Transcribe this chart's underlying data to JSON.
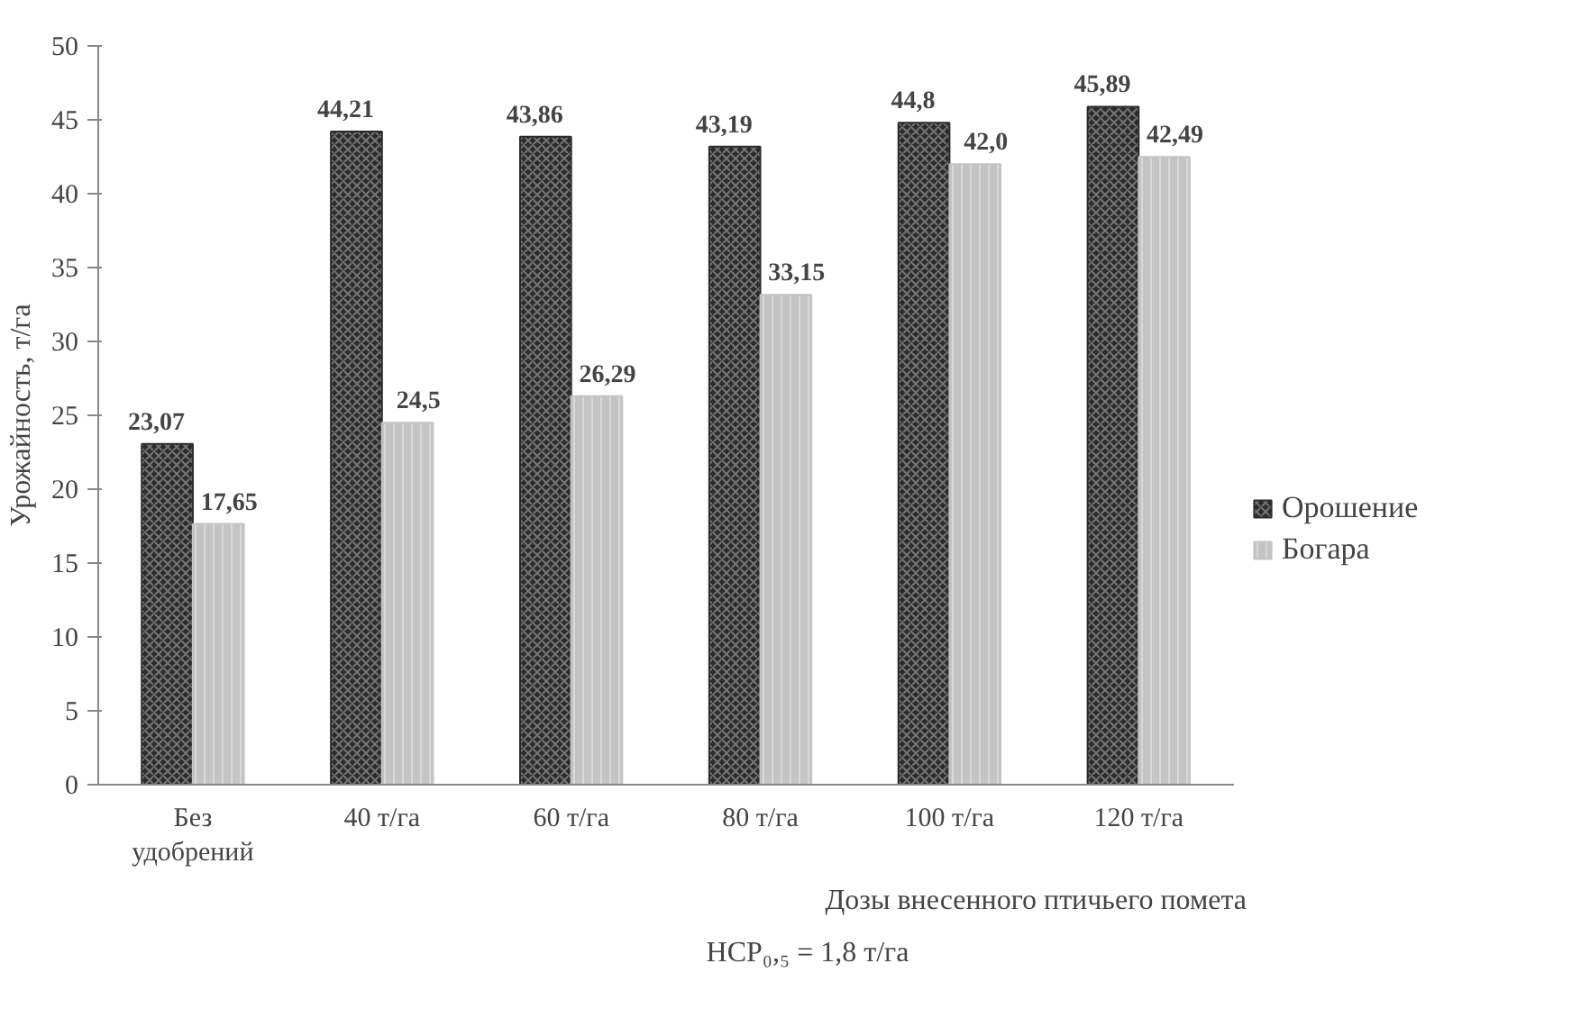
{
  "chart_data": {
    "type": "bar",
    "ylabel": "Урожайность, т/га",
    "xlabel": "Дозы внесенного птичьего помета",
    "annotations": [
      "НСР₀,₅ = 1,8 т/га"
    ],
    "categories": [
      "Без удобрений",
      "40 т/га",
      "60 т/га",
      "80 т/га",
      "100 т/га",
      "120 т/га"
    ],
    "series": [
      {
        "name": "Орошение",
        "color": "#2b2b2b",
        "values": [
          23.07,
          44.21,
          43.86,
          43.19,
          44.8,
          45.89
        ],
        "value_labels": [
          "23,07",
          "44,21",
          "43,86",
          "43,19",
          "44,8",
          "45,89"
        ]
      },
      {
        "name": "Богара",
        "color": "#c4c4c4",
        "values": [
          17.65,
          24.5,
          26.29,
          33.15,
          42.0,
          42.49
        ],
        "value_labels": [
          "17,65",
          "24,5",
          "26,29",
          "33,15",
          "42,0",
          "42,49"
        ]
      }
    ],
    "ylim": [
      0,
      50
    ],
    "yticks": [
      0,
      5,
      10,
      15,
      20,
      25,
      30,
      35,
      40,
      45,
      50
    ],
    "grid": false,
    "legend": "right"
  }
}
